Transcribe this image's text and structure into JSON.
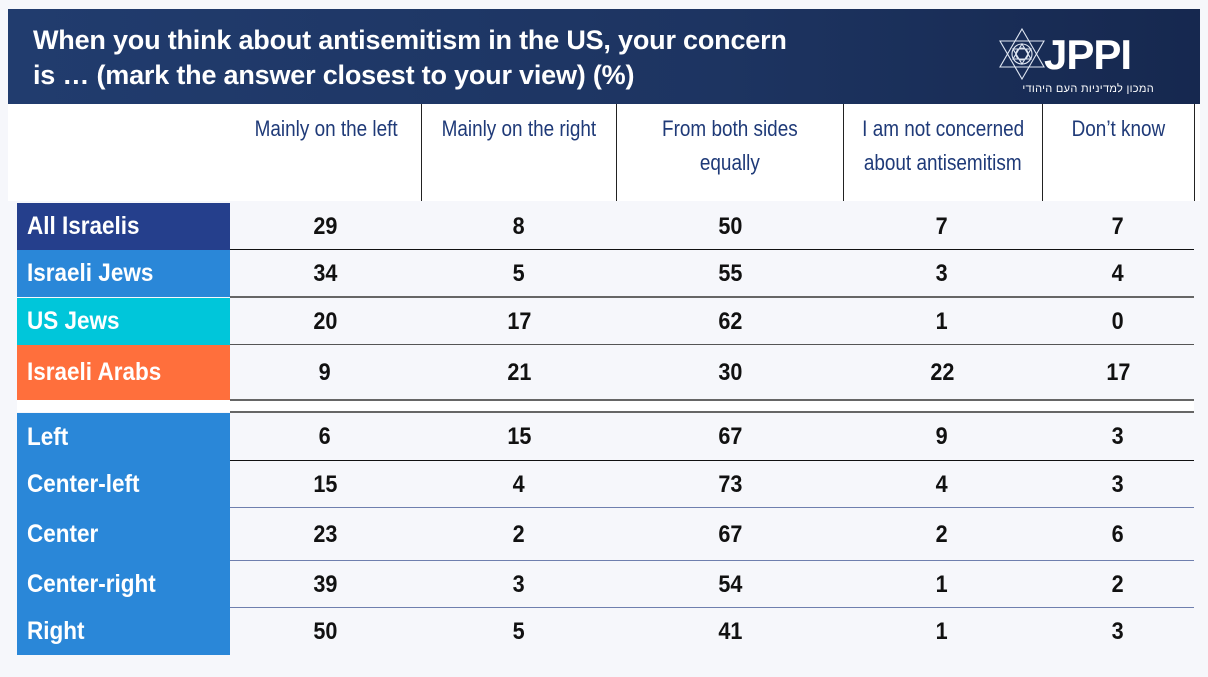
{
  "header": {
    "title_line1": "When you think about antisemitism in the US, your concern",
    "title_line2": "is … (mark the answer closest to your view) (%)",
    "logo_text": "JPPI",
    "logo_subtitle": "המכון למדיניות העם היהודי",
    "logo_icon": "star-of-david-icon"
  },
  "colors": {
    "header_bg": "#1d3461",
    "all_israelis": "#253f8c",
    "israeli_jews": "#2a87d8",
    "us_jews": "#00c6da",
    "israeli_arabs": "#ff6f3c",
    "political": "#2a87d8",
    "column_header_text": "#1f3a78"
  },
  "columns": [
    {
      "line1": "Mainly on the left",
      "line2": ""
    },
    {
      "line1": "Mainly on the right",
      "line2": ""
    },
    {
      "line1": "From both sides",
      "line2": "equally"
    },
    {
      "line1": "I am not concerned",
      "line2": "about antisemitism"
    },
    {
      "line1": "Don’t know",
      "line2": ""
    }
  ],
  "rows": [
    {
      "label": "All Israelis",
      "values": [
        "29",
        "8",
        "50",
        "7",
        "7"
      ]
    },
    {
      "label": "Israeli Jews",
      "values": [
        "34",
        "5",
        "55",
        "3",
        "4"
      ]
    },
    {
      "label": "US Jews",
      "values": [
        "20",
        "17",
        "62",
        "1",
        "0"
      ]
    },
    {
      "label": "Israeli Arabs",
      "values": [
        "9",
        "21",
        "30",
        "22",
        "17"
      ]
    },
    {
      "label": "Left",
      "values": [
        "6",
        "15",
        "67",
        "9",
        "3"
      ]
    },
    {
      "label": "Center-left",
      "values": [
        "15",
        "4",
        "73",
        "4",
        "3"
      ]
    },
    {
      "label": "Center",
      "values": [
        "23",
        "2",
        "67",
        "2",
        "6"
      ]
    },
    {
      "label": "Center-right",
      "values": [
        "39",
        "3",
        "54",
        "1",
        "2"
      ]
    },
    {
      "label": "Right",
      "values": [
        "50",
        "5",
        "41",
        "1",
        "3"
      ]
    }
  ]
}
